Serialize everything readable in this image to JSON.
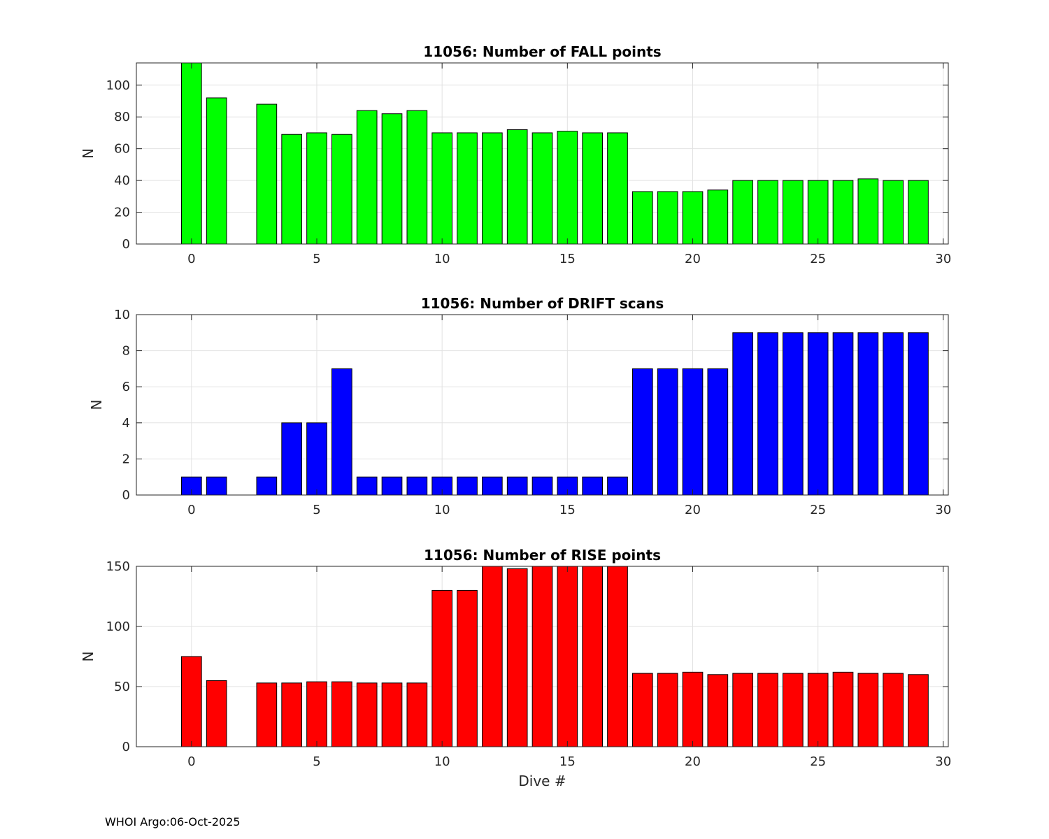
{
  "footer": {
    "text": "WHOI Argo:06-Oct-2025"
  },
  "chart_data": [
    {
      "type": "bar",
      "title": "11056: Number of FALL points",
      "xlabel": "",
      "ylabel": "N",
      "color": "#00ff00",
      "xlim": [
        -2.2,
        30.2
      ],
      "ylim": [
        0,
        114
      ],
      "xticks": [
        0,
        5,
        10,
        15,
        20,
        25,
        30
      ],
      "yticks": [
        0,
        20,
        40,
        60,
        80,
        100
      ],
      "grid": true,
      "x": [
        0,
        1,
        3,
        4,
        5,
        6,
        7,
        8,
        9,
        10,
        11,
        12,
        13,
        14,
        15,
        16,
        17,
        18,
        19,
        20,
        21,
        22,
        23,
        24,
        25,
        26,
        27,
        28,
        29
      ],
      "values": [
        114,
        92,
        88,
        69,
        70,
        69,
        84,
        82,
        84,
        70,
        70,
        70,
        72,
        70,
        71,
        70,
        70,
        33,
        33,
        33,
        34,
        40,
        40,
        40,
        40,
        40,
        41,
        40,
        40
      ]
    },
    {
      "type": "bar",
      "title": "11056: Number of DRIFT scans",
      "xlabel": "",
      "ylabel": "N",
      "color": "#0000ff",
      "xlim": [
        -2.2,
        30.2
      ],
      "ylim": [
        0,
        10
      ],
      "xticks": [
        0,
        5,
        10,
        15,
        20,
        25,
        30
      ],
      "yticks": [
        0,
        2,
        4,
        6,
        8,
        10
      ],
      "grid": true,
      "x": [
        -1,
        0,
        1,
        2,
        3,
        4,
        5,
        6,
        7,
        8,
        9,
        10,
        11,
        12,
        13,
        14,
        15,
        16,
        17,
        18,
        19,
        20,
        21,
        22,
        23,
        24,
        25,
        26,
        27,
        28,
        29
      ],
      "values": [
        0,
        1,
        1,
        0,
        1,
        4,
        4,
        7,
        1,
        1,
        1,
        1,
        1,
        1,
        1,
        1,
        1,
        1,
        1,
        7,
        7,
        7,
        7,
        9,
        9,
        9,
        9,
        9,
        9,
        9,
        9
      ]
    },
    {
      "type": "bar",
      "title": "11056: Number of RISE points",
      "xlabel": "Dive #",
      "ylabel": "N",
      "color": "#ff0000",
      "xlim": [
        -2.2,
        30.2
      ],
      "ylim": [
        0,
        150
      ],
      "xticks": [
        0,
        5,
        10,
        15,
        20,
        25,
        30
      ],
      "yticks": [
        0,
        50,
        100,
        150
      ],
      "grid": true,
      "x": [
        0,
        1,
        3,
        4,
        5,
        6,
        7,
        8,
        9,
        10,
        11,
        12,
        13,
        14,
        15,
        16,
        17,
        18,
        19,
        20,
        21,
        22,
        23,
        24,
        25,
        26,
        27,
        28,
        29
      ],
      "values": [
        75,
        55,
        53,
        53,
        54,
        54,
        53,
        53,
        53,
        130,
        130,
        150,
        148,
        150,
        150,
        150,
        150,
        61,
        61,
        62,
        60,
        61,
        61,
        61,
        61,
        62,
        61,
        61,
        60
      ]
    }
  ]
}
